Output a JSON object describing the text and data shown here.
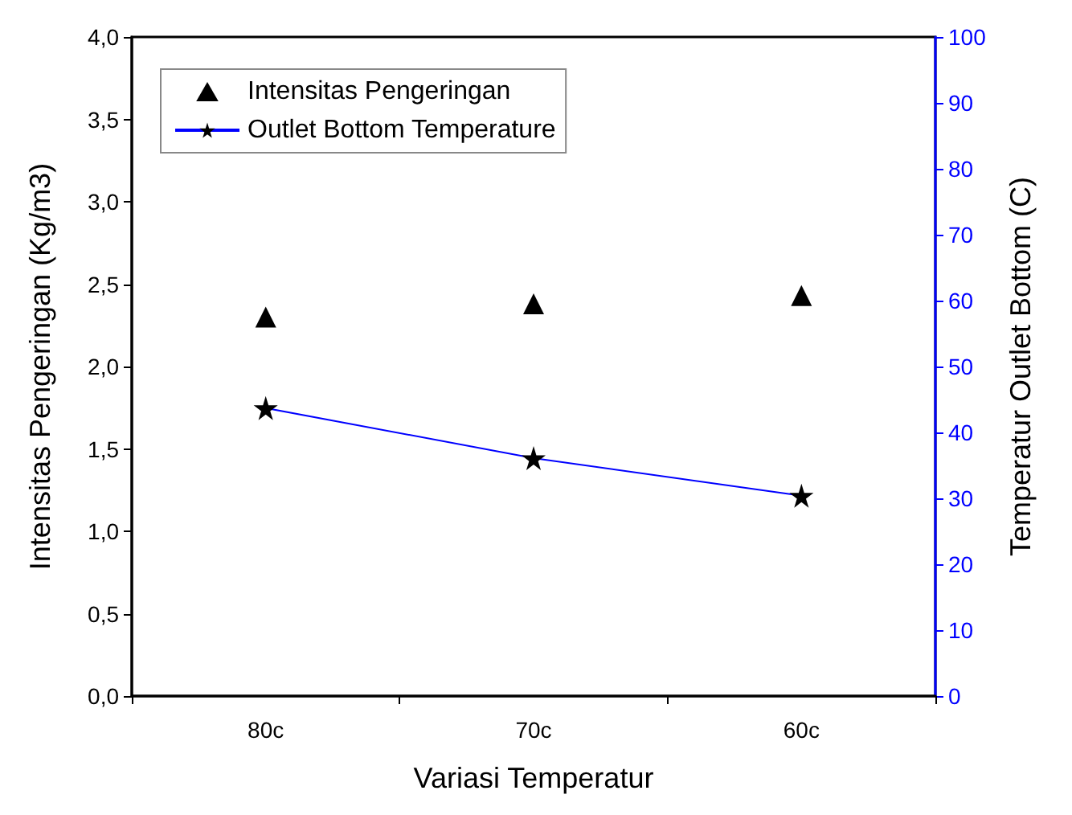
{
  "chart_data": {
    "type": "line",
    "xlabel": "Variasi Temperatur",
    "ylabel": "Intensitas Pengeringan (Kg/m3)",
    "y2label": "Temperatur Outlet Bottom (C)",
    "categories": [
      "80c",
      "70c",
      "60c"
    ],
    "series": [
      {
        "name": "Intensitas Pengeringan",
        "type": "scatter",
        "color": "#000000",
        "marker": "triangle",
        "values": [
          2.3,
          2.38,
          2.43
        ]
      },
      {
        "name": "Outlet Bottom Temperature",
        "axis": "y2",
        "color": "#0000ff",
        "marker": "star",
        "line_style": "solid",
        "values": [
          43.7,
          36.1,
          30.4
        ]
      }
    ],
    "ylim": [
      0,
      4
    ],
    "yticks": [
      {
        "value": 0,
        "label": "0,0"
      },
      {
        "value": 0.5,
        "label": "0,5"
      },
      {
        "value": 1,
        "label": "1,0"
      },
      {
        "value": 1.5,
        "label": "1,5"
      },
      {
        "value": 2,
        "label": "2,0"
      },
      {
        "value": 2.5,
        "label": "2,5"
      },
      {
        "value": 3,
        "label": "3,0"
      },
      {
        "value": 3.5,
        "label": "3,5"
      },
      {
        "value": 4,
        "label": "4,0"
      }
    ],
    "y2lim": [
      0,
      100
    ],
    "y2ticks": [
      0,
      10,
      20,
      30,
      40,
      50,
      60,
      70,
      80,
      90,
      100
    ],
    "legend": "top left",
    "grid": false
  }
}
